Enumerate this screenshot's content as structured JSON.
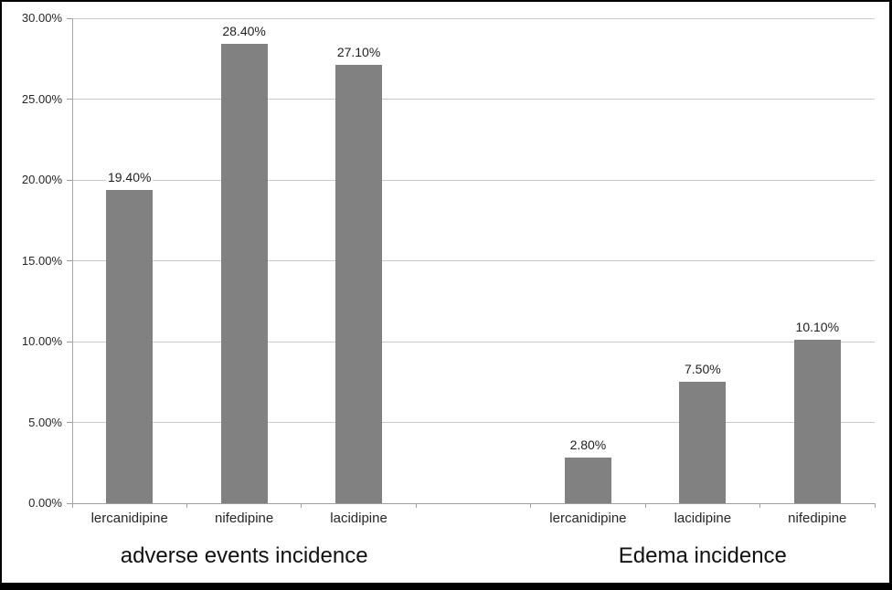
{
  "chart_data": {
    "type": "bar",
    "title": "",
    "xlabel": "",
    "ylabel": "",
    "ylim": [
      0,
      30
    ],
    "ytick_step": 5,
    "ytick_labels": [
      "0.00%",
      "5.00%",
      "10.00%",
      "15.00%",
      "20.00%",
      "25.00%",
      "30.00%"
    ],
    "grid": true,
    "legend": "none",
    "bar_color": "#818181",
    "gridline_color": "#c9c9c9",
    "axis_color": "#9e9e9e",
    "text_color": "#262626",
    "groups": [
      {
        "label": "adverse events incidence",
        "categories": [
          "lercanidipine",
          "nifedipine",
          "lacidipine"
        ],
        "values": [
          19.4,
          28.4,
          27.1
        ],
        "value_labels": [
          "19.40%",
          "28.40%",
          "27.10%"
        ]
      },
      {
        "label": "Edema incidence",
        "categories": [
          "lercanidipine",
          "lacidipine",
          "nifedipine"
        ],
        "values": [
          2.8,
          7.5,
          10.1
        ],
        "value_labels": [
          "2.80%",
          "7.50%",
          "10.10%"
        ]
      }
    ]
  }
}
